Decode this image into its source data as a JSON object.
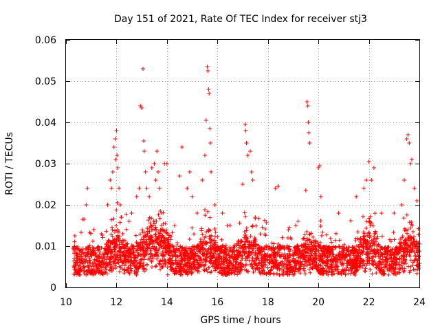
{
  "chart_data": {
    "type": "scatter",
    "title": "Day 151 of 2021, Rate Of TEC Index for receiver stj3",
    "xlabel": "GPS time / hours",
    "ylabel": "ROTI / TECUs",
    "xlim": [
      10,
      24
    ],
    "ylim": [
      0,
      0.06
    ],
    "xticks": [
      10,
      12,
      14,
      16,
      18,
      20,
      22,
      24
    ],
    "yticks": [
      0,
      0.01,
      0.02,
      0.03,
      0.04,
      0.05,
      0.06
    ],
    "xtick_labels": [
      "10",
      "12",
      "14",
      "16",
      "18",
      "20",
      "22",
      "24"
    ],
    "ytick_labels": [
      "0",
      "0.01",
      "0.02",
      "0.03",
      "0.04",
      "0.05",
      "0.06"
    ],
    "grid": true,
    "marker": "+",
    "series_color": "#ff0000",
    "series": [
      {
        "name": "ROTI",
        "x": [
          10.35,
          10.8,
          10.85,
          11.1,
          11.4,
          11.65,
          11.75,
          11.8,
          11.85,
          11.9,
          11.95,
          11.97,
          12.0,
          12.02,
          12.05,
          12.1,
          12.15,
          12.2,
          12.25,
          12.5,
          12.6,
          12.8,
          12.9,
          12.95,
          13.0,
          13.05,
          13.08,
          13.1,
          13.15,
          13.2,
          13.3,
          13.4,
          13.5,
          13.55,
          13.6,
          13.65,
          13.7,
          13.8,
          13.9,
          14.0,
          14.3,
          14.5,
          14.6,
          14.8,
          14.9,
          15.0,
          15.2,
          15.4,
          15.5,
          15.55,
          15.6,
          15.62,
          15.65,
          15.67,
          15.7,
          15.72,
          15.75,
          15.9,
          16.2,
          16.5,
          17.0,
          17.1,
          17.12,
          17.15,
          17.2,
          17.3,
          17.35,
          17.4,
          17.5,
          18.3,
          18.4,
          18.9,
          19.1,
          19.5,
          19.55,
          19.58,
          19.6,
          19.62,
          19.65,
          20.0,
          20.05,
          20.1,
          20.8,
          21.5,
          21.8,
          21.9,
          22.0,
          22.1,
          22.2,
          22.5,
          23.0,
          23.3,
          23.4,
          23.5,
          23.55,
          23.6,
          23.65,
          23.7,
          23.8,
          23.9
        ],
        "y": [
          0.0125,
          0.02,
          0.024,
          0.014,
          0.013,
          0.02,
          0.026,
          0.024,
          0.028,
          0.034,
          0.036,
          0.031,
          0.038,
          0.032,
          0.029,
          0.024,
          0.02,
          0.017,
          0.013,
          0.016,
          0.018,
          0.022,
          0.024,
          0.044,
          0.0435,
          0.053,
          0.0355,
          0.033,
          0.028,
          0.024,
          0.022,
          0.029,
          0.03,
          0.026,
          0.033,
          0.028,
          0.024,
          0.018,
          0.03,
          0.03,
          0.015,
          0.027,
          0.034,
          0.024,
          0.028,
          0.022,
          0.018,
          0.026,
          0.032,
          0.0405,
          0.0535,
          0.0525,
          0.048,
          0.047,
          0.0385,
          0.035,
          0.028,
          0.02,
          0.018,
          0.015,
          0.025,
          0.0395,
          0.038,
          0.035,
          0.032,
          0.033,
          0.028,
          0.026,
          0.017,
          0.024,
          0.0245,
          0.012,
          0.015,
          0.0235,
          0.045,
          0.044,
          0.04,
          0.0375,
          0.035,
          0.029,
          0.0295,
          0.022,
          0.018,
          0.022,
          0.024,
          0.026,
          0.0305,
          0.026,
          0.029,
          0.018,
          0.018,
          0.02,
          0.026,
          0.036,
          0.037,
          0.035,
          0.03,
          0.031,
          0.024,
          0.021
        ]
      }
    ]
  }
}
